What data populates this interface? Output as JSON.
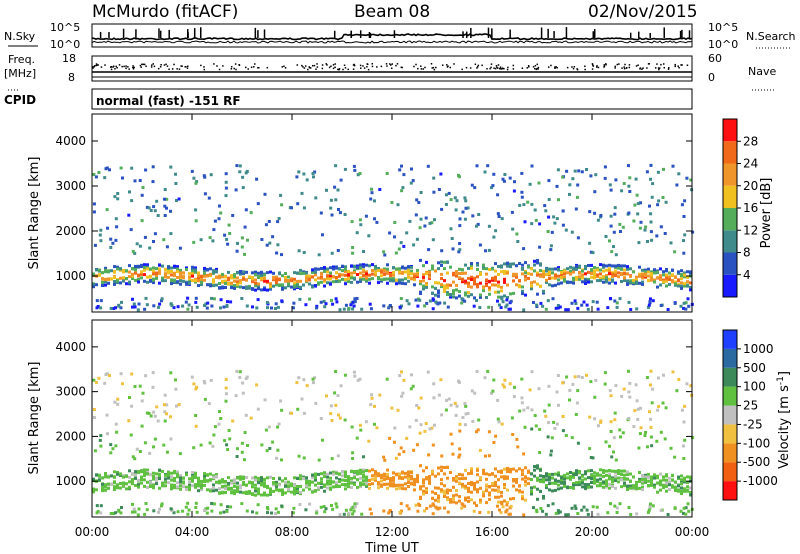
{
  "header": {
    "station": "McMurdo (fitACF)",
    "beam": "Beam 08",
    "date": "02/Nov/2015"
  },
  "noise_panel": {
    "left_label": "N.Sky",
    "right_label": "N.Search",
    "left_ticks": [
      "10^5",
      "10^0"
    ],
    "right_ticks": [
      "10^5",
      "10^0"
    ]
  },
  "freq_panel": {
    "left_label_line1": "Freq.",
    "left_label_line2": "[MHz]",
    "left_ticks": [
      "18",
      "8"
    ],
    "right_label": "Nave",
    "right_ticks": [
      "60",
      "0"
    ]
  },
  "cpid_panel": {
    "label": "CPID",
    "text": "normal (fast) -151 RF"
  },
  "x_axis": {
    "label": "Time UT",
    "ticks": [
      "00:00",
      "04:00",
      "08:00",
      "12:00",
      "16:00",
      "20:00",
      "00:00"
    ]
  },
  "chart_data": [
    {
      "type": "heatmap",
      "name": "power",
      "ylabel": "Slant Range [km]",
      "xlabel": "Time UT",
      "x_range_hours": [
        0,
        24
      ],
      "ylim": [
        200,
        4600
      ],
      "yticks": [
        1000,
        2000,
        3000,
        4000
      ],
      "colorbar": {
        "label": "Power [dB]",
        "ticks": [
          "4",
          "8",
          "12",
          "16",
          "20",
          "24",
          "28"
        ],
        "levels": [
          0,
          4,
          8,
          12,
          16,
          20,
          24,
          28,
          30
        ],
        "colors": [
          "#1a1aff",
          "#2a52c0",
          "#3f8a8a",
          "#54ad5a",
          "#f0c020",
          "#f0952a",
          "#f06a1a",
          "#ff1010"
        ]
      },
      "features": [
        {
          "desc": "main scatter band",
          "t_start": 0,
          "t_end": 24,
          "range_center_km": 1000,
          "range_width_km": 350
        },
        {
          "desc": "dense band 13-18 UT",
          "t_start": 13,
          "t_end": 18,
          "range_center_km": 800,
          "range_width_km": 500
        },
        {
          "desc": "upper scatter",
          "t_start": 0,
          "t_end": 24,
          "range_center_km": 2700,
          "range_width_km": 600
        }
      ]
    },
    {
      "type": "heatmap",
      "name": "velocity",
      "ylabel": "Slant Range [km]",
      "xlabel": "Time UT",
      "x_range_hours": [
        0,
        24
      ],
      "ylim": [
        200,
        4600
      ],
      "yticks": [
        1000,
        2000,
        3000,
        4000
      ],
      "colorbar": {
        "label": "Velocity [m s-1]",
        "ticks": [
          "1000",
          "500",
          "100",
          "25",
          "-25",
          "-100",
          "-500",
          "-1000"
        ],
        "colors": [
          "#2040ff",
          "#2a6aa0",
          "#3c8a5a",
          "#60c040",
          "#c0c0c0",
          "#f0c040",
          "#f09020",
          "#f06010",
          "#ff1010"
        ]
      }
    }
  ]
}
